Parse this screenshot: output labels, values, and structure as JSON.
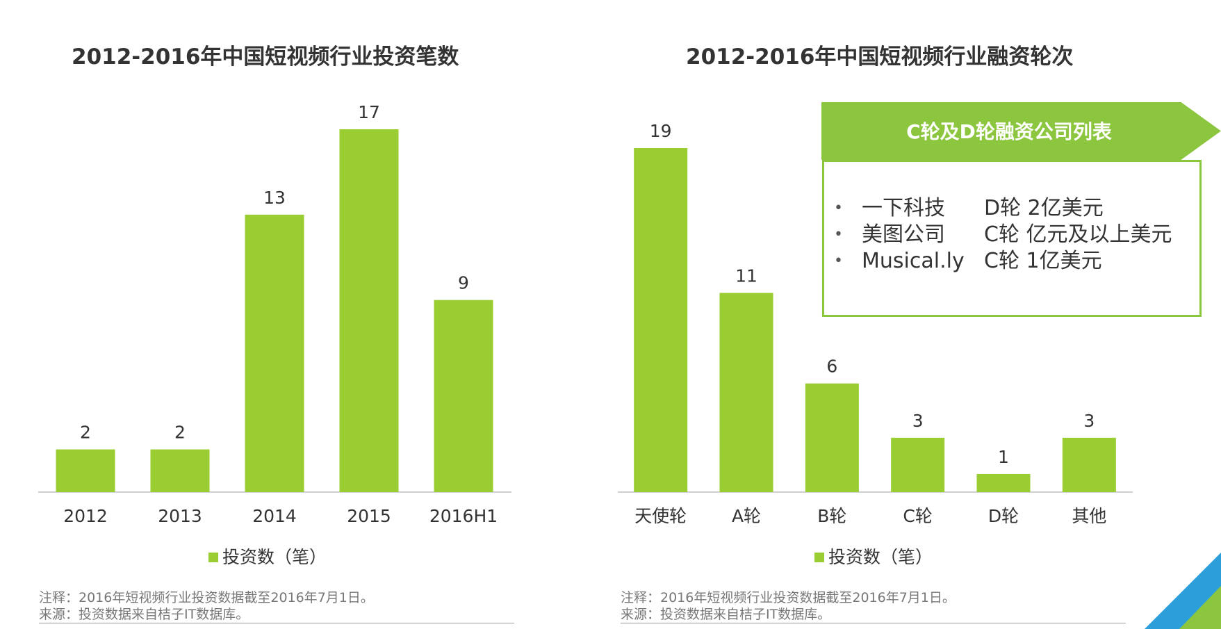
{
  "chart_data": [
    {
      "type": "bar",
      "title": "2012-2016年中国短视频行业投资笔数",
      "categories": [
        "2012",
        "2013",
        "2014",
        "2015",
        "2016H1"
      ],
      "values": [
        2,
        2,
        13,
        17,
        9
      ],
      "legend": "投资数（笔）",
      "ylim": [
        0,
        17
      ],
      "color": "#9acd32"
    },
    {
      "type": "bar",
      "title": "2012-2016年中国短视频行业融资轮次",
      "categories": [
        "天使轮",
        "A轮",
        "B轮",
        "C轮",
        "D轮",
        "其他"
      ],
      "values": [
        19,
        11,
        6,
        3,
        1,
        3
      ],
      "legend": "投资数（笔）",
      "ylim": [
        0,
        19
      ],
      "color": "#9acd32"
    }
  ],
  "notes": {
    "left": [
      "注释：2016年短视频行业投资数据截至2016年7月1日。",
      "来源：投资数据来自桔子IT数据库。"
    ],
    "right": [
      "注释：2016年短视频行业投资数据截至2016年7月1日。",
      "来源：投资数据来自桔子IT数据库。"
    ]
  },
  "callout": {
    "title": "C轮及D轮融资公司列表",
    "items": [
      {
        "bullet": "•",
        "company": "一下科技",
        "round": "D轮 2亿美元"
      },
      {
        "bullet": "•",
        "company": "美图公司",
        "round": "C轮 亿元及以上美元"
      },
      {
        "bullet": "•",
        "company": "Musical.ly",
        "round": "C轮 1亿美元"
      }
    ]
  },
  "colors": {
    "bar": "#9acd32",
    "accent": "#8cc63f",
    "blue": "#2b9fd9"
  }
}
